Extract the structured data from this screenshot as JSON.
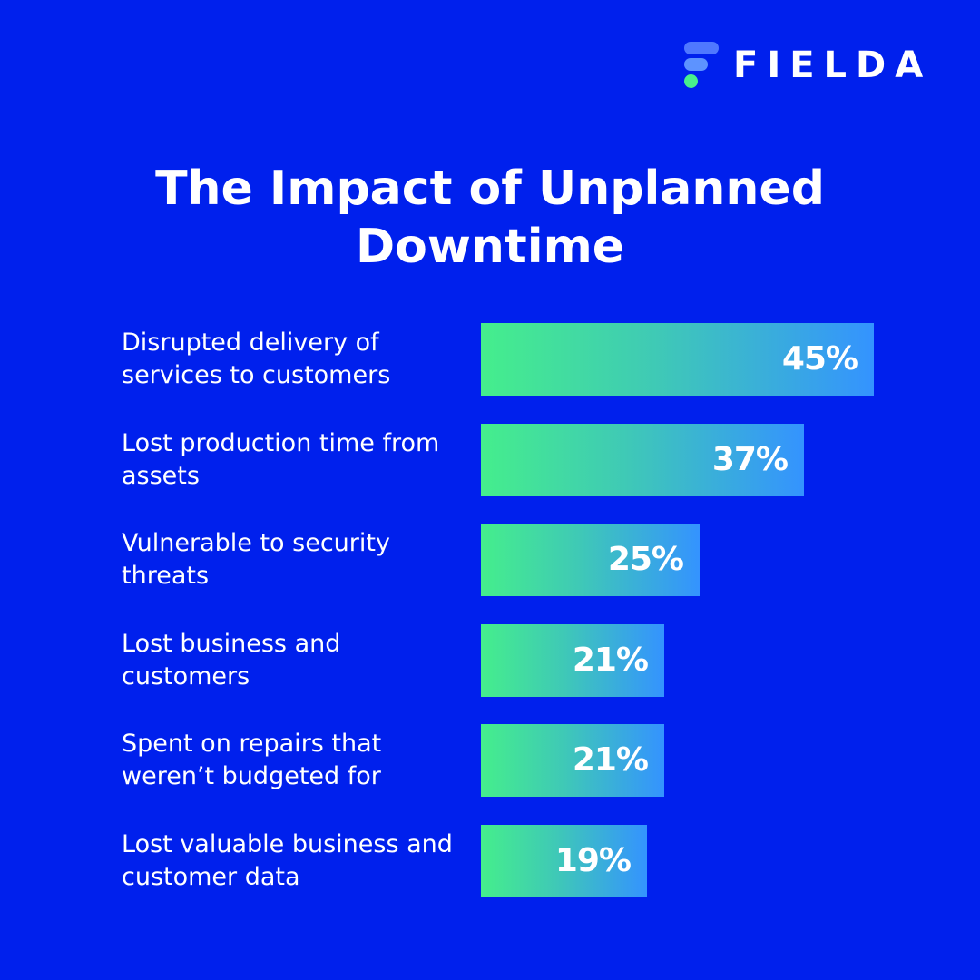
{
  "brand": {
    "name": "FIELDA",
    "colors": {
      "background": "#0020ED",
      "bar_gradient_start": "#45ee8c",
      "bar_gradient_end": "#3493ff",
      "logo_dot": "#48f08c",
      "logo_bar": "#4f78ff"
    }
  },
  "chart_data": {
    "type": "bar",
    "orientation": "horizontal",
    "title": "The Impact of Unplanned Downtime",
    "categories": [
      "Disrupted delivery of services to customers",
      "Lost production time from assets",
      "Vulnerable to security threats",
      "Lost business and customers",
      "Spent on repairs that weren’t budgeted for",
      "Lost valuable business and customer data"
    ],
    "values": [
      45,
      37,
      25,
      21,
      21,
      19
    ],
    "value_labels": [
      "45%",
      "37%",
      "25%",
      "21%",
      "21%",
      "19%"
    ],
    "unit": "%",
    "xlim": [
      0,
      45
    ],
    "grid": false,
    "legend": "none"
  }
}
